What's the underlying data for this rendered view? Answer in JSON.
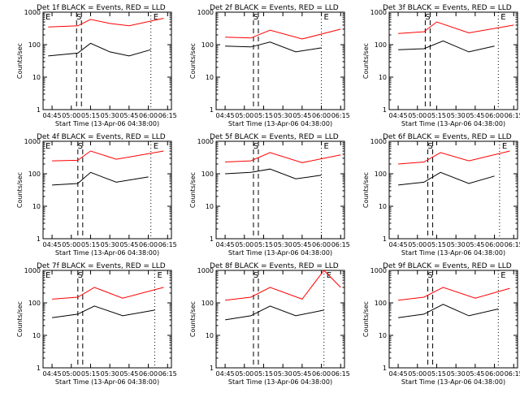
{
  "y_axis_label": "Counts/sec",
  "x_axis_label": "Start Time (13-Apr-06 04:38:00)",
  "x_ticks": [
    "04:45",
    "05:00",
    "05:15",
    "05:30",
    "05:45",
    "06:00",
    "06:15"
  ],
  "y_ticks": [
    "1",
    "10",
    "100",
    "1000"
  ],
  "colors": {
    "events": "#000000",
    "lld": "#ff0000",
    "axes": "#000000"
  },
  "chart_data": [
    {
      "type": "line",
      "title": "Det 1f BLACK = Events, RED = LLD",
      "markers": [
        {
          "label": "E",
          "x": "04:38"
        },
        {
          "label": "S",
          "x": "05:06"
        },
        {
          "label": "E",
          "x": "06:02"
        }
      ],
      "xlim": [
        "04:38",
        "06:18"
      ],
      "ylim": [
        1,
        1000
      ],
      "yscale": "log",
      "series": [
        {
          "name": "Events",
          "values": [
            {
              "x": "04:42",
              "y": 45
            },
            {
              "x": "05:05",
              "y": 55
            },
            {
              "x": "05:15",
              "y": 110
            },
            {
              "x": "05:30",
              "y": 60
            },
            {
              "x": "05:45",
              "y": 45
            },
            {
              "x": "06:02",
              "y": 70
            }
          ]
        },
        {
          "name": "LLD",
          "values": [
            {
              "x": "04:42",
              "y": 350
            },
            {
              "x": "05:05",
              "y": 380
            },
            {
              "x": "05:15",
              "y": 600
            },
            {
              "x": "05:30",
              "y": 450
            },
            {
              "x": "05:45",
              "y": 380
            },
            {
              "x": "06:12",
              "y": 650
            }
          ]
        }
      ]
    },
    {
      "type": "line",
      "title": "Det 2f BLACK = Events, RED = LLD",
      "markers": [
        {
          "label": "S",
          "x": "05:09"
        },
        {
          "label": "E",
          "x": "06:00"
        }
      ],
      "xlim": [
        "04:38",
        "06:18"
      ],
      "ylim": [
        1,
        1000
      ],
      "yscale": "log",
      "series": [
        {
          "name": "Events",
          "values": [
            {
              "x": "04:45",
              "y": 90
            },
            {
              "x": "05:05",
              "y": 85
            },
            {
              "x": "05:20",
              "y": 120
            },
            {
              "x": "05:40",
              "y": 60
            },
            {
              "x": "06:00",
              "y": 80
            }
          ]
        },
        {
          "name": "LLD",
          "values": [
            {
              "x": "04:45",
              "y": 170
            },
            {
              "x": "05:05",
              "y": 160
            },
            {
              "x": "05:20",
              "y": 280
            },
            {
              "x": "05:45",
              "y": 150
            },
            {
              "x": "06:15",
              "y": 300
            }
          ]
        }
      ]
    },
    {
      "type": "line",
      "title": "Det 3f BLACK = Events, RED = LLD",
      "markers": [
        {
          "label": "S",
          "x": "05:08"
        },
        {
          "label": "E",
          "x": "06:03"
        }
      ],
      "xlim": [
        "04:38",
        "06:18"
      ],
      "ylim": [
        1,
        1000
      ],
      "yscale": "log",
      "series": [
        {
          "name": "Events",
          "values": [
            {
              "x": "04:45",
              "y": 70
            },
            {
              "x": "05:05",
              "y": 75
            },
            {
              "x": "05:20",
              "y": 130
            },
            {
              "x": "05:40",
              "y": 60
            },
            {
              "x": "06:00",
              "y": 90
            }
          ]
        },
        {
          "name": "LLD",
          "values": [
            {
              "x": "04:45",
              "y": 220
            },
            {
              "x": "05:05",
              "y": 250
            },
            {
              "x": "05:15",
              "y": 500
            },
            {
              "x": "05:40",
              "y": 230
            },
            {
              "x": "06:15",
              "y": 400
            }
          ]
        }
      ]
    },
    {
      "type": "line",
      "title": "Det 4f BLACK = Events, RED = LLD",
      "markers": [
        {
          "label": "E",
          "x": "04:38"
        },
        {
          "label": "S",
          "x": "05:07"
        },
        {
          "label": "E",
          "x": "06:02"
        }
      ],
      "xlim": [
        "04:38",
        "06:18"
      ],
      "ylim": [
        1,
        1000
      ],
      "yscale": "log",
      "series": [
        {
          "name": "Events",
          "values": [
            {
              "x": "04:45",
              "y": 45
            },
            {
              "x": "05:05",
              "y": 50
            },
            {
              "x": "05:15",
              "y": 110
            },
            {
              "x": "05:35",
              "y": 55
            },
            {
              "x": "06:00",
              "y": 80
            }
          ]
        },
        {
          "name": "LLD",
          "values": [
            {
              "x": "04:45",
              "y": 250
            },
            {
              "x": "05:05",
              "y": 260
            },
            {
              "x": "05:15",
              "y": 500
            },
            {
              "x": "05:35",
              "y": 280
            },
            {
              "x": "06:12",
              "y": 500
            }
          ]
        }
      ]
    },
    {
      "type": "line",
      "title": "Det 5f BLACK = Events, RED = LLD",
      "markers": [
        {
          "label": "S",
          "x": "05:09"
        },
        {
          "label": "E",
          "x": "06:00"
        }
      ],
      "xlim": [
        "04:38",
        "06:18"
      ],
      "ylim": [
        1,
        1000
      ],
      "yscale": "log",
      "series": [
        {
          "name": "Events",
          "values": [
            {
              "x": "04:45",
              "y": 100
            },
            {
              "x": "05:05",
              "y": 110
            },
            {
              "x": "05:20",
              "y": 140
            },
            {
              "x": "05:40",
              "y": 70
            },
            {
              "x": "06:00",
              "y": 90
            }
          ]
        },
        {
          "name": "LLD",
          "values": [
            {
              "x": "04:45",
              "y": 230
            },
            {
              "x": "05:05",
              "y": 250
            },
            {
              "x": "05:20",
              "y": 450
            },
            {
              "x": "05:45",
              "y": 220
            },
            {
              "x": "06:15",
              "y": 380
            }
          ]
        }
      ]
    },
    {
      "type": "line",
      "title": "Det 6f BLACK = Events, RED = LLD",
      "markers": [
        {
          "label": "S",
          "x": "05:10"
        },
        {
          "label": "E",
          "x": "06:04"
        }
      ],
      "xlim": [
        "04:38",
        "06:18"
      ],
      "ylim": [
        1,
        1000
      ],
      "yscale": "log",
      "series": [
        {
          "name": "Events",
          "values": [
            {
              "x": "04:45",
              "y": 45
            },
            {
              "x": "05:05",
              "y": 55
            },
            {
              "x": "05:18",
              "y": 110
            },
            {
              "x": "05:40",
              "y": 50
            },
            {
              "x": "06:00",
              "y": 85
            }
          ]
        },
        {
          "name": "LLD",
          "values": [
            {
              "x": "04:45",
              "y": 200
            },
            {
              "x": "05:05",
              "y": 230
            },
            {
              "x": "05:18",
              "y": 450
            },
            {
              "x": "05:40",
              "y": 250
            },
            {
              "x": "06:12",
              "y": 500
            }
          ]
        }
      ]
    },
    {
      "type": "line",
      "title": "Det 7f BLACK = Events, RED = LLD",
      "markers": [
        {
          "label": "E",
          "x": "04:38"
        },
        {
          "label": "S",
          "x": "05:07"
        },
        {
          "label": "E",
          "x": "06:05"
        }
      ],
      "xlim": [
        "04:38",
        "06:18"
      ],
      "ylim": [
        1,
        1000
      ],
      "yscale": "log",
      "series": [
        {
          "name": "Events",
          "values": [
            {
              "x": "04:45",
              "y": 35
            },
            {
              "x": "05:05",
              "y": 45
            },
            {
              "x": "05:18",
              "y": 80
            },
            {
              "x": "05:40",
              "y": 40
            },
            {
              "x": "06:05",
              "y": 60
            }
          ]
        },
        {
          "name": "LLD",
          "values": [
            {
              "x": "04:45",
              "y": 130
            },
            {
              "x": "05:05",
              "y": 150
            },
            {
              "x": "05:18",
              "y": 300
            },
            {
              "x": "05:40",
              "y": 140
            },
            {
              "x": "06:12",
              "y": 300
            }
          ]
        }
      ]
    },
    {
      "type": "line",
      "title": "Det 8f BLACK = Events, RED = LLD",
      "markers": [
        {
          "label": "S",
          "x": "05:09"
        },
        {
          "label": "E",
          "x": "06:02"
        }
      ],
      "xlim": [
        "04:38",
        "06:18"
      ],
      "ylim": [
        1,
        1000
      ],
      "yscale": "log",
      "series": [
        {
          "name": "Events",
          "values": [
            {
              "x": "04:45",
              "y": 30
            },
            {
              "x": "05:05",
              "y": 40
            },
            {
              "x": "05:20",
              "y": 80
            },
            {
              "x": "05:40",
              "y": 40
            },
            {
              "x": "06:02",
              "y": 60
            }
          ]
        },
        {
          "name": "LLD",
          "values": [
            {
              "x": "04:45",
              "y": 120
            },
            {
              "x": "05:05",
              "y": 150
            },
            {
              "x": "05:20",
              "y": 300
            },
            {
              "x": "05:45",
              "y": 130
            },
            {
              "x": "06:02",
              "y": 1000
            },
            {
              "x": "06:15",
              "y": 300
            }
          ]
        }
      ]
    },
    {
      "type": "line",
      "title": "Det 9f BLACK = Events, RED = LLD",
      "markers": [
        {
          "label": "S",
          "x": "05:10"
        },
        {
          "label": "E",
          "x": "06:03"
        }
      ],
      "xlim": [
        "04:38",
        "06:18"
      ],
      "ylim": [
        1,
        1000
      ],
      "yscale": "log",
      "series": [
        {
          "name": "Events",
          "values": [
            {
              "x": "04:45",
              "y": 35
            },
            {
              "x": "05:05",
              "y": 45
            },
            {
              "x": "05:20",
              "y": 90
            },
            {
              "x": "05:40",
              "y": 40
            },
            {
              "x": "06:03",
              "y": 65
            }
          ]
        },
        {
          "name": "LLD",
          "values": [
            {
              "x": "04:45",
              "y": 120
            },
            {
              "x": "05:05",
              "y": 150
            },
            {
              "x": "05:20",
              "y": 300
            },
            {
              "x": "05:45",
              "y": 140
            },
            {
              "x": "06:12",
              "y": 280
            }
          ]
        }
      ]
    }
  ]
}
